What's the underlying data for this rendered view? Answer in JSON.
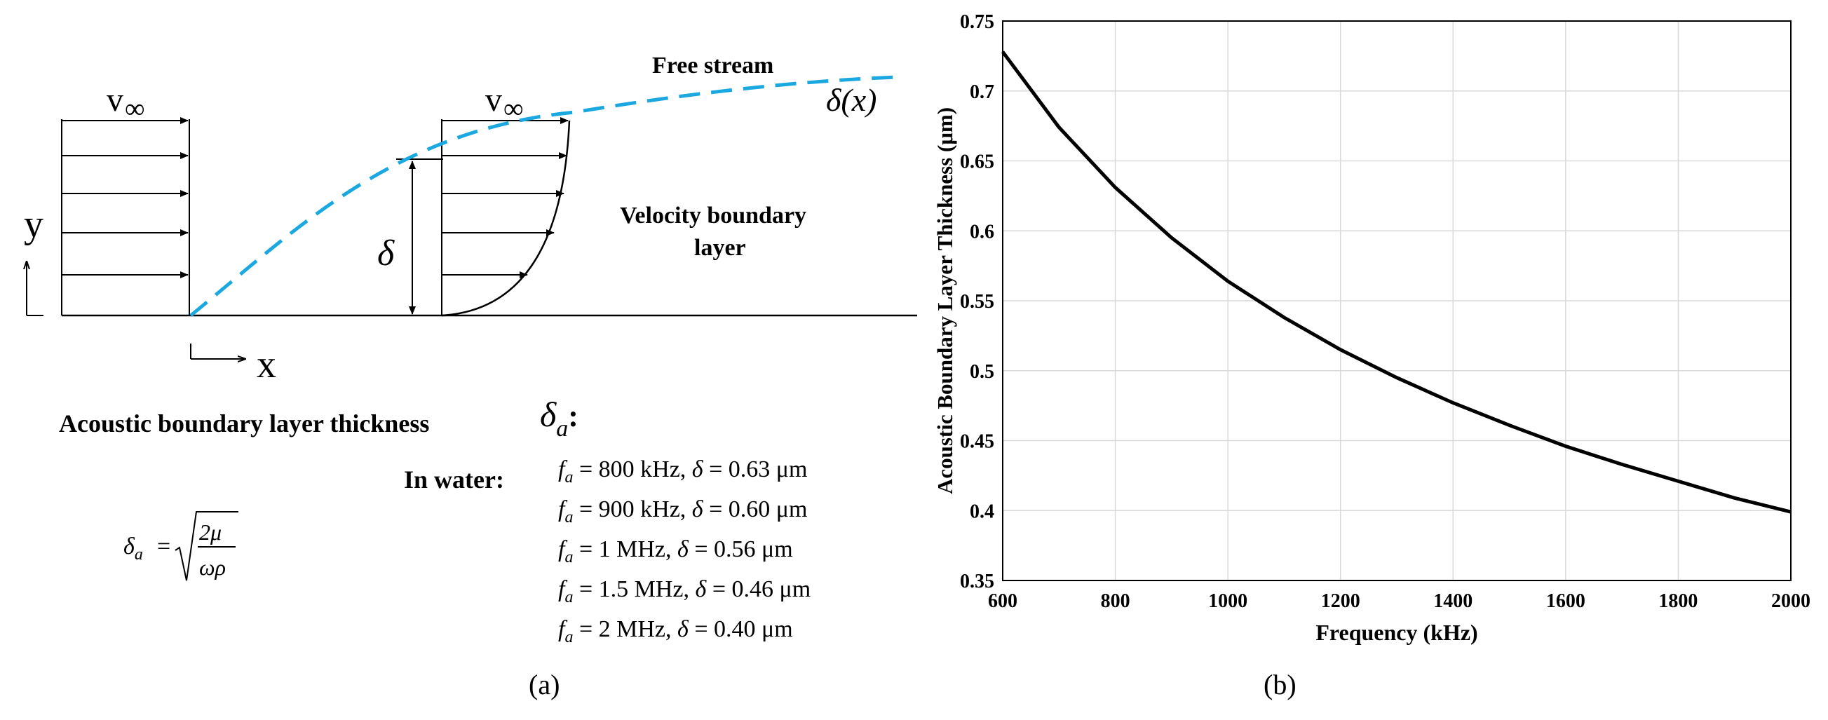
{
  "panel_a": {
    "caption": "(a)",
    "axes": {
      "y_label": "y",
      "x_label": "x"
    },
    "flow": {
      "v_inf_base": "v",
      "v_inf_sub": "∞",
      "free_stream": "Free stream",
      "delta_x_label": "δ(x)",
      "delta_label": "δ",
      "velocity_layer_line1": "Velocity boundary",
      "velocity_layer_line2": "layer"
    },
    "acoustic": {
      "heading": "Acoustic boundary layer thickness",
      "symbol": "δ",
      "symbol_sub": "a",
      "colon": ":",
      "formula_lhs": "δ",
      "formula_lhs_sub": "a",
      "formula_eq": "=",
      "formula_num": "2μ",
      "formula_den": "ωρ",
      "water_label": "In water:",
      "cases": [
        {
          "freq": "800 kHz",
          "thickness": "0.63 μm"
        },
        {
          "freq": "900 kHz",
          "thickness": "0.60 μm"
        },
        {
          "freq": "1 MHz",
          "thickness": "0.56 μm"
        },
        {
          "freq": "1.5 MHz",
          "thickness": "0.46 μm"
        },
        {
          "freq": "2 MHz",
          "thickness": "0.40 μm"
        }
      ]
    }
  },
  "panel_b": {
    "caption": "(b)"
  },
  "colors": {
    "stream_line": "#1ba8e0",
    "ink": "#000000",
    "grid": "#d9d9d9"
  },
  "chart_data": {
    "type": "line",
    "title": "",
    "xlabel": "Frequency (kHz)",
    "ylabel": "Acoustic Boundary Layer Thickness (μm)",
    "xlim": [
      600,
      2000
    ],
    "ylim": [
      0.35,
      0.75
    ],
    "xticks": [
      600,
      800,
      1000,
      1200,
      1400,
      1600,
      1800,
      2000
    ],
    "yticks": [
      0.35,
      0.4,
      0.45,
      0.5,
      0.55,
      0.6,
      0.65,
      0.7,
      0.75
    ],
    "ytick_labels": [
      "0.35",
      "0.4",
      "0.45",
      "0.5",
      "0.55",
      "0.6",
      "0.65",
      "0.7",
      "0.75"
    ],
    "grid": true,
    "series": [
      {
        "name": "Acoustic boundary layer thickness",
        "x": [
          600,
          700,
          800,
          900,
          1000,
          1100,
          1200,
          1300,
          1400,
          1500,
          1600,
          1700,
          1800,
          1900,
          2000
        ],
        "values": [
          0.728,
          0.674,
          0.631,
          0.595,
          0.564,
          0.538,
          0.515,
          0.495,
          0.477,
          0.461,
          0.446,
          0.433,
          0.421,
          0.409,
          0.399
        ]
      }
    ]
  }
}
